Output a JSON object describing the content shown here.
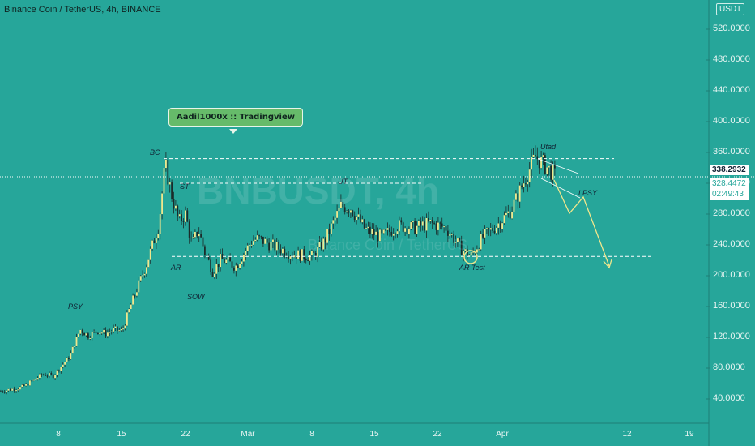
{
  "header": {
    "symbol_title": "Binance Coin / TetherUS, 4h, BINANCE",
    "currency_badge": "USDT",
    "watermark": "BNBUSDT, 4h",
    "watermark_sub": "Binance Coin / TetherUS"
  },
  "note": {
    "text": "Aadil1000x :: Tradingview"
  },
  "price_tags": {
    "last": "338.2932",
    "second": "328.4472",
    "countdown": "02:49:43"
  },
  "annotations": {
    "bc": "BC",
    "st": "ST",
    "ut": "UT",
    "utad": "Utad",
    "lpsy": "LPSY",
    "psy": "PSY",
    "ar": "AR",
    "sow": "SOW",
    "ar_test": "AR Test"
  },
  "colors": {
    "background": "#26a69a",
    "candle": "#f0e68c",
    "wick": "#1b2b2a",
    "note_bg": "#66bb6a",
    "tag_price": "#ffffff",
    "tag_dark": "#1b2b2a"
  },
  "chart_data": {
    "type": "line",
    "title": "Binance Coin / TetherUS, 4h, BINANCE",
    "ylim": [
      0,
      560
    ],
    "y_ticks": [
      "520.0000",
      "480.0000",
      "440.0000",
      "400.0000",
      "360.0000",
      "320.0000",
      "280.0000",
      "240.0000",
      "200.0000",
      "160.0000",
      "120.0000",
      "80.0000",
      "40.0000"
    ],
    "x_ticks": [
      "8",
      "15",
      "22",
      "Mar",
      "8",
      "15",
      "22",
      "Apr",
      "12",
      "19"
    ],
    "series": [
      {
        "x": [
          "Feb 1",
          "Feb 3",
          "Feb 5",
          "Feb 6",
          "Feb 8",
          "Feb 9",
          "Feb 10",
          "Feb 11",
          "Feb 12",
          "Feb 13",
          "Feb 14",
          "Feb 15",
          "Feb 16",
          "Feb 18",
          "Feb 19",
          "Feb 20",
          "Feb 21",
          "Feb 22",
          "Feb 23",
          "Feb 24",
          "Feb 25",
          "Feb 26",
          "Feb 27",
          "Feb 28",
          "Mar 1",
          "Mar 2",
          "Mar 4",
          "Mar 6",
          "Mar 8",
          "Mar 9",
          "Mar 10",
          "Mar 11",
          "Mar 13",
          "Mar 15",
          "Mar 17",
          "Mar 19",
          "Mar 21",
          "Mar 23",
          "Mar 24",
          "Mar 25",
          "Mar 26",
          "Mar 28",
          "Mar 30",
          "Apr 1",
          "Apr 2",
          "Apr 3",
          "Apr 4"
        ],
        "values": [
          50,
          55,
          72,
          70,
          95,
          130,
          122,
          128,
          125,
          130,
          128,
          160,
          215,
          265,
          345,
          300,
          270,
          280,
          240,
          260,
          230,
          205,
          222,
          212,
          245,
          248,
          238,
          228,
          225,
          245,
          290,
          288,
          260,
          250,
          265,
          262,
          268,
          262,
          235,
          225,
          250,
          265,
          285,
          320,
          355,
          345,
          330
        ]
      }
    ],
    "levels": [
      352,
      320,
      225
    ]
  }
}
